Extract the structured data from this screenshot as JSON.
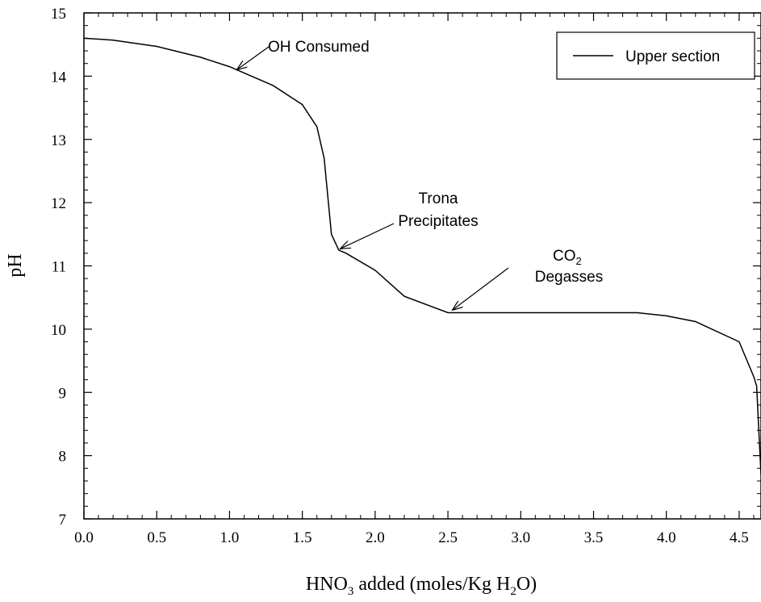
{
  "chart_data": {
    "type": "line",
    "ylabel": "pH",
    "xlabel_parts": [
      "HNO",
      "3",
      " added (moles/Kg H",
      "2",
      "O)"
    ],
    "xlim": [
      0,
      4.65
    ],
    "ylim": [
      7,
      15
    ],
    "x_ticks": [
      "0.0",
      "0.5",
      "1.0",
      "1.5",
      "2.0",
      "2.5",
      "3.0",
      "3.5",
      "4.0",
      "4.5"
    ],
    "x_tick_values": [
      0,
      0.5,
      1,
      1.5,
      2,
      2.5,
      3,
      3.5,
      4,
      4.5
    ],
    "y_ticks": [
      "7",
      "8",
      "9",
      "10",
      "11",
      "12",
      "13",
      "14",
      "15"
    ],
    "y_tick_values": [
      7,
      8,
      9,
      10,
      11,
      12,
      13,
      14,
      15
    ],
    "legend": {
      "position": "top-right",
      "entries": [
        "Upper section"
      ]
    },
    "series": [
      {
        "name": "Upper section",
        "x": [
          0,
          0.2,
          0.5,
          0.8,
          1.0,
          1.3,
          1.5,
          1.6,
          1.65,
          1.7,
          1.75,
          1.8,
          2.0,
          2.2,
          2.5,
          2.8,
          3.2,
          3.5,
          3.8,
          4.0,
          4.2,
          4.5,
          4.6,
          4.62,
          4.65
        ],
        "y": [
          14.6,
          14.57,
          14.47,
          14.3,
          14.15,
          13.85,
          13.55,
          13.2,
          12.7,
          11.5,
          11.25,
          11.2,
          10.93,
          10.52,
          10.26,
          10.26,
          10.26,
          10.26,
          10.26,
          10.21,
          10.12,
          9.8,
          9.25,
          9.1,
          7.7
        ]
      }
    ],
    "annotations": [
      {
        "lines": [
          "OH Consumed"
        ],
        "arrow_to": [
          1.05,
          14.1
        ]
      },
      {
        "lines": [
          "Trona",
          "Precipitates"
        ],
        "arrow_to": [
          1.76,
          11.27
        ]
      },
      {
        "lines_parts": [
          [
            "CO",
            "2"
          ],
          [
            "Degasses"
          ]
        ],
        "arrow_to": [
          2.53,
          10.3
        ]
      }
    ]
  }
}
